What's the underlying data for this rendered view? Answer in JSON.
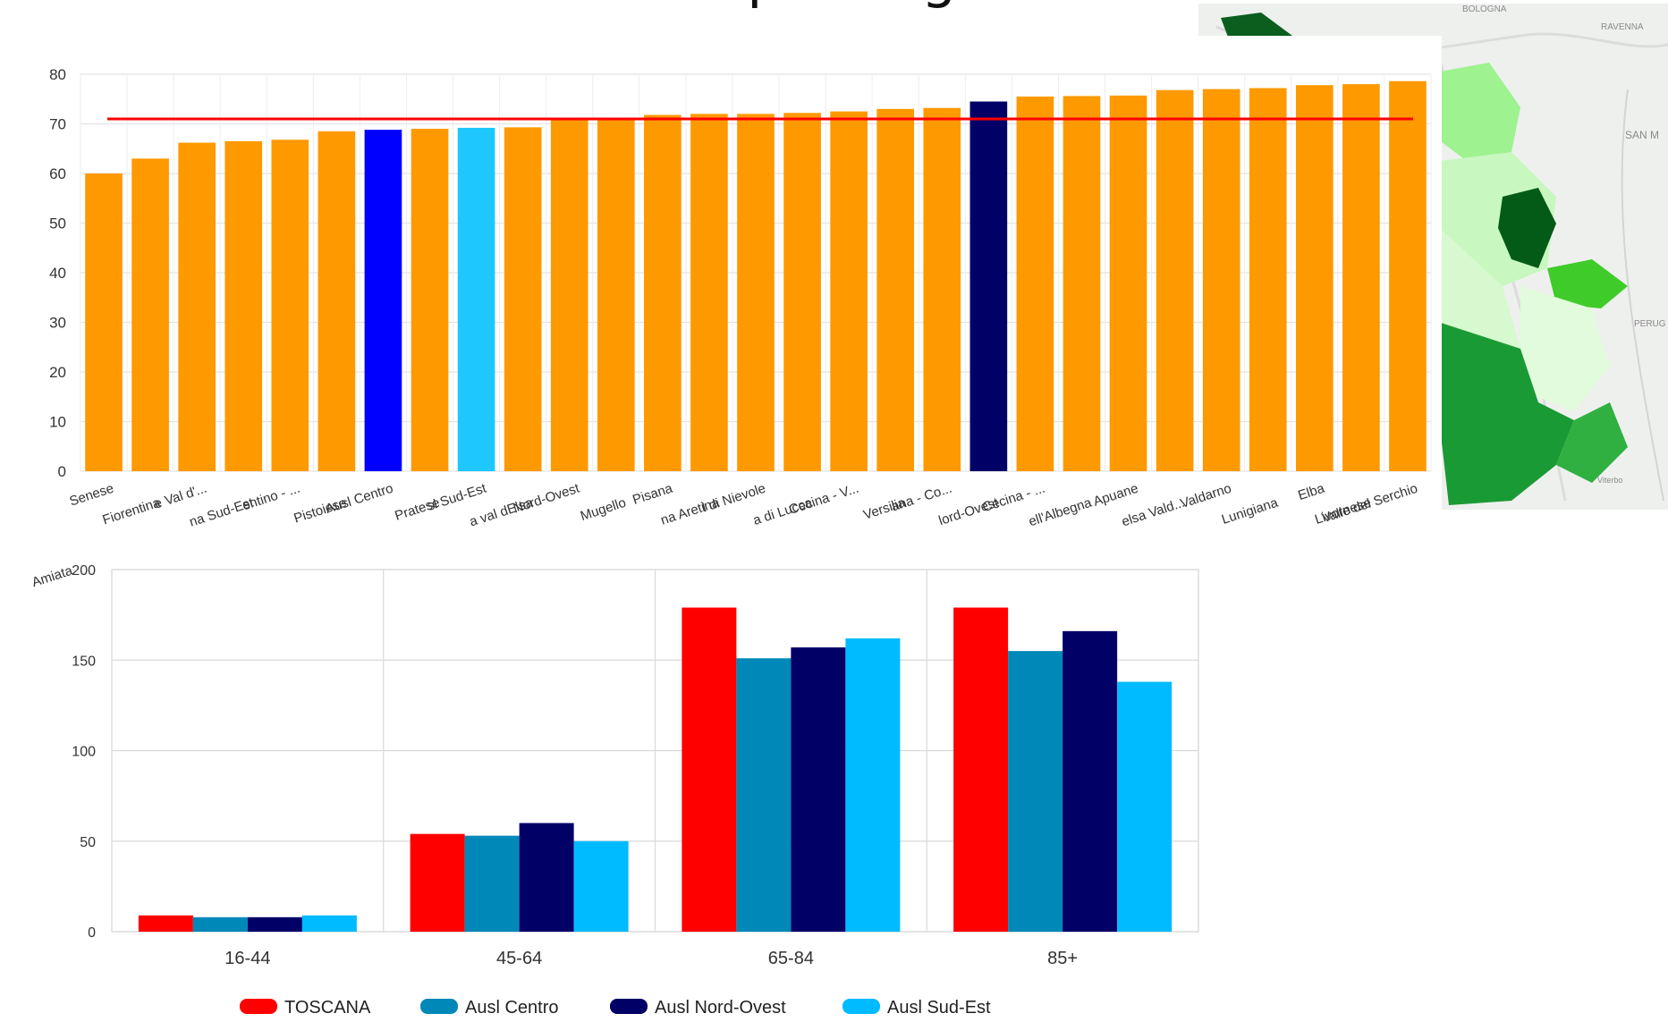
{
  "page": {
    "title": "patologia"
  },
  "map": {
    "labels": [
      "BOLOGNA",
      "RAVENNA",
      "SAN M",
      "PERUG",
      "Viterbo"
    ]
  },
  "chart_data": [
    {
      "type": "bar",
      "title": "",
      "xlabel": "",
      "ylabel": "",
      "ylim": [
        0,
        80
      ],
      "yticks": [
        0,
        10,
        20,
        30,
        40,
        50,
        60,
        70,
        80
      ],
      "grid": true,
      "reference_line": {
        "value": 71,
        "color": "#ff0000"
      },
      "categories": [
        "Amiata Senese",
        "Fiorentina",
        "Alta Val di Cecina e Val d'...",
        "Ausl Toscana Sud-Est",
        "Casentino - ...",
        "Pistoiese",
        "Ausl Centro",
        "Pratese",
        "Ausl Sud-Est",
        "Alta val dElsa",
        "Ausl Nord-Ovest",
        "Mugello",
        "Pisana",
        "Zona Aretina",
        "Val di Nievole",
        "Piana di Lucca",
        "Valli Etrusche Cecina - V...",
        "Versilia",
        "Lunigiana - Co...",
        "Ausl Nord-Ovest",
        "Bassa Val di Cecina - ...",
        "Colline dell'Albegna",
        "Apuane",
        "Valdelsa Vald...",
        "Valdarno",
        "Lunigiana",
        "Elba",
        "Livornese",
        "Valle del Serchio"
      ],
      "displayed_labels": [
        "Amiata",
        "Senese",
        "Fiorentina",
        "e Val d'...",
        "na Sud-Est",
        "entino - ...",
        "Pistoiese",
        "Ausl Centro",
        "Pratese",
        "sl Sud-Est",
        "a val dElsa",
        "Nord-Ovest",
        "Mugello",
        "Pisana",
        "na Aretina",
        "l di Nievole",
        "a di Lucca",
        "Cecina - V...",
        "Versilia",
        "ana - Co...",
        "lord-Ovest",
        "Cecina - ...",
        "ell'Albegna",
        "Apuane",
        "elsa Vald...",
        "Valdarno",
        "Lunigiana",
        "Elba",
        "Livornese",
        "Valle del Serchio"
      ],
      "values": [
        60,
        63,
        66.2,
        66.5,
        66.8,
        68.5,
        68.8,
        69,
        69.2,
        69.3,
        70.8,
        71,
        71.8,
        72,
        72,
        72.2,
        72.5,
        73,
        73.2,
        74.5,
        75.5,
        75.6,
        75.7,
        76.8,
        77,
        77.2,
        77.8,
        78,
        78.6
      ],
      "colors": [
        "#ff9900",
        "#ff9900",
        "#ff9900",
        "#ff9900",
        "#ff9900",
        "#ff9900",
        "#0000ff",
        "#ff9900",
        "#1ec8ff",
        "#ff9900",
        "#ff9900",
        "#ff9900",
        "#ff9900",
        "#ff9900",
        "#ff9900",
        "#ff9900",
        "#ff9900",
        "#ff9900",
        "#ff9900",
        "#000066",
        "#ff9900",
        "#ff9900",
        "#ff9900",
        "#ff9900",
        "#ff9900",
        "#ff9900",
        "#ff9900",
        "#ff9900",
        "#ff9900"
      ]
    },
    {
      "type": "bar",
      "title": "",
      "xlabel": "",
      "ylabel": "",
      "ylim": [
        0,
        200
      ],
      "yticks": [
        0,
        50,
        100,
        150,
        200
      ],
      "grid": true,
      "legend_position": "bottom",
      "categories": [
        "16-44",
        "45-64",
        "65-84",
        "85+"
      ],
      "series": [
        {
          "name": "TOSCANA",
          "color": "#ff0000",
          "values": [
            9,
            54,
            179,
            179
          ]
        },
        {
          "name": "Ausl Centro",
          "color": "#0088b8",
          "values": [
            8,
            53,
            151,
            155
          ]
        },
        {
          "name": "Ausl Nord-Ovest",
          "color": "#000066",
          "values": [
            8,
            60,
            157,
            166
          ]
        },
        {
          "name": "Ausl Sud-Est",
          "color": "#00bbff",
          "values": [
            9,
            50,
            162,
            138
          ]
        }
      ]
    }
  ]
}
